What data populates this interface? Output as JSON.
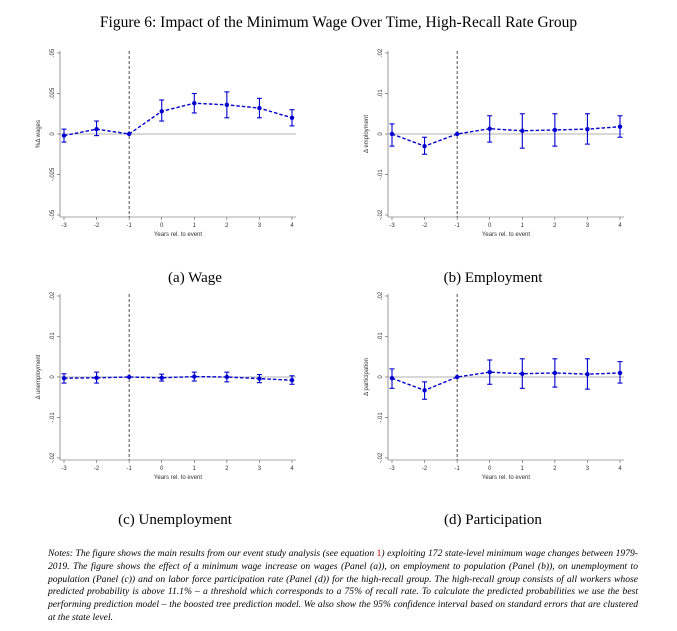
{
  "figure": {
    "title": "Figure 6: Impact of the Minimum Wage Over Time, High-Recall Rate Group",
    "notes": {
      "text_before_ref": "Notes: The figure shows the main results from our event study analysis (see equation ",
      "ref": "1",
      "text_after_ref": ") exploiting 172 state-level minimum wage changes between 1979-2019. The figure shows the effect of a minimum wage increase on wages (Panel (a)), on employment to population (Panel (b)), on unemployment to population (Panel (c)) and on labor force participation rate (Panel (d)) for the high-recall group. The high-recall group consists of all workers whose predicted probability is above 11.1% – a threshold which corresponds to a 75% of recall rate. To calculate the predicted probabilities we use the best performing prediction model – the boosted tree prediction model. We also show the 95% confidence interval based on standard errors that are clustered at the state level."
    }
  },
  "chart_data": [
    {
      "type": "line",
      "caption": "(a) Wage",
      "xlabel": "Years rel. to event",
      "ylabel": "%Δ wages",
      "x": [
        -3,
        -2,
        -1,
        0,
        1,
        2,
        3,
        4
      ],
      "xticks": [
        "-3",
        "-2",
        "-1",
        "0",
        "1",
        "2",
        "3",
        "4"
      ],
      "ylim": [
        -0.05,
        0.05
      ],
      "yticks": [
        -0.05,
        -0.025,
        0,
        0.025,
        0.05
      ],
      "ytick_labels": [
        "-.05",
        "-.025",
        "0",
        ".025",
        ".05"
      ],
      "event_line_x": -1,
      "series": [
        {
          "values": [
            -0.001,
            0.003,
            0.0,
            0.014,
            0.019,
            0.018,
            0.016,
            0.01
          ],
          "ci_low": [
            -0.005,
            -0.001,
            0.0,
            0.008,
            0.013,
            0.01,
            0.01,
            0.005
          ],
          "ci_high": [
            0.003,
            0.008,
            0.0,
            0.021,
            0.025,
            0.026,
            0.022,
            0.015
          ]
        }
      ],
      "color": "#0000d0"
    },
    {
      "type": "line",
      "caption": "(b) Employment",
      "xlabel": "Years rel. to event",
      "ylabel": "Δ employment",
      "x": [
        -3,
        -2,
        -1,
        0,
        1,
        2,
        3,
        4
      ],
      "xticks": [
        "-3",
        "-2",
        "-1",
        "0",
        "1",
        "2",
        "3",
        "4"
      ],
      "ylim": [
        -0.02,
        0.02
      ],
      "yticks": [
        -0.02,
        -0.01,
        0,
        0.01,
        0.02
      ],
      "ytick_labels": [
        "-.02",
        "-.01",
        "0",
        ".01",
        ".02"
      ],
      "event_line_x": -1,
      "series": [
        {
          "values": [
            0.0,
            -0.003,
            0.0,
            0.0013,
            0.0008,
            0.001,
            0.0012,
            0.0018
          ],
          "ci_low": [
            -0.003,
            -0.005,
            0.0,
            -0.002,
            -0.0035,
            -0.003,
            -0.0025,
            -0.0008
          ],
          "ci_high": [
            0.0025,
            -0.0008,
            0.0,
            0.0045,
            0.005,
            0.005,
            0.005,
            0.0045
          ]
        }
      ],
      "color": "#0000d0"
    },
    {
      "type": "line",
      "caption": "(c) Unemployment",
      "xlabel": "Years rel. to event",
      "ylabel": "Δ unemployment",
      "x": [
        -3,
        -2,
        -1,
        0,
        1,
        2,
        3,
        4
      ],
      "xticks": [
        "-3",
        "-2",
        "-1",
        "0",
        "1",
        "2",
        "3",
        "4"
      ],
      "ylim": [
        -0.02,
        0.02
      ],
      "yticks": [
        -0.02,
        -0.01,
        0,
        0.01,
        0.02
      ],
      "ytick_labels": [
        "-.02",
        "-.01",
        "0",
        ".01",
        ".02"
      ],
      "event_line_x": -1,
      "series": [
        {
          "values": [
            -0.0003,
            -0.0002,
            0.0,
            -0.0002,
            0.0001,
            0.0,
            -0.0004,
            -0.0008
          ],
          "ci_low": [
            -0.0015,
            -0.0015,
            0.0,
            -0.001,
            -0.001,
            -0.0012,
            -0.0014,
            -0.0018
          ],
          "ci_high": [
            0.0008,
            0.0012,
            0.0,
            0.0007,
            0.0012,
            0.0012,
            0.0006,
            0.0003
          ]
        }
      ],
      "color": "#0000d0"
    },
    {
      "type": "line",
      "caption": "(d) Participation",
      "xlabel": "Years rel. to event",
      "ylabel": "Δ participation",
      "x": [
        -3,
        -2,
        -1,
        0,
        1,
        2,
        3,
        4
      ],
      "xticks": [
        "-3",
        "-2",
        "-1",
        "0",
        "1",
        "2",
        "3",
        "4"
      ],
      "ylim": [
        -0.02,
        0.02
      ],
      "yticks": [
        -0.02,
        -0.01,
        0,
        0.01,
        0.02
      ],
      "ytick_labels": [
        "-.02",
        "-.01",
        "0",
        ".01",
        ".02"
      ],
      "event_line_x": -1,
      "series": [
        {
          "values": [
            -0.0003,
            -0.0033,
            0.0,
            0.0012,
            0.0008,
            0.001,
            0.0007,
            0.001
          ],
          "ci_low": [
            -0.0028,
            -0.0055,
            0.0,
            -0.0018,
            -0.0028,
            -0.0025,
            -0.003,
            -0.0015
          ],
          "ci_high": [
            0.002,
            -0.0012,
            0.0,
            0.0042,
            0.0045,
            0.0045,
            0.0045,
            0.0038
          ]
        }
      ],
      "color": "#0000d0"
    }
  ]
}
